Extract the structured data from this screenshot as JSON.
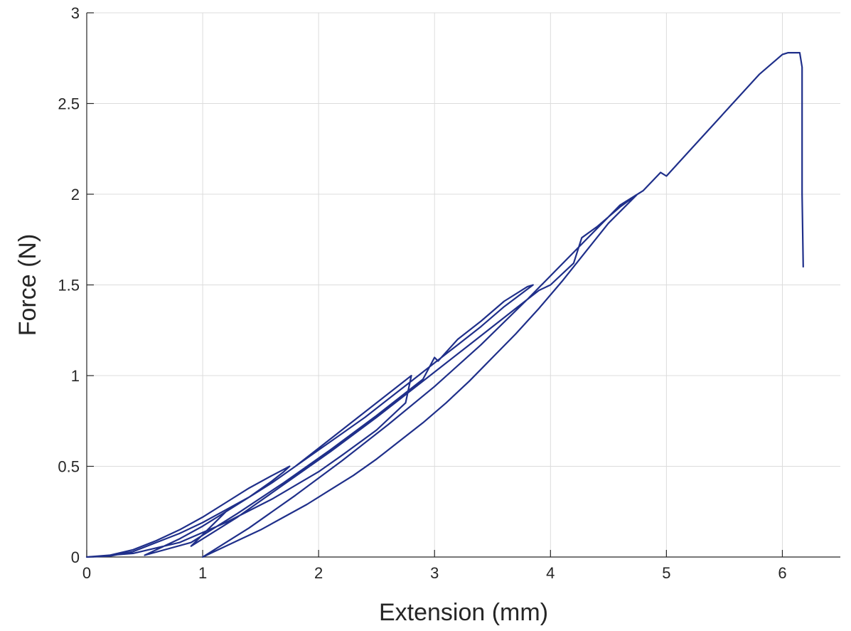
{
  "chart_data": {
    "type": "line",
    "xlabel": "Extension (mm)",
    "ylabel": "Force (N)",
    "xlim": [
      0,
      6.5
    ],
    "ylim": [
      0,
      3
    ],
    "xticks": [
      0,
      1,
      2,
      3,
      4,
      5,
      6
    ],
    "yticks": [
      0,
      0.5,
      1,
      1.5,
      2,
      2.5,
      3
    ],
    "xtick_labels": [
      "0",
      "1",
      "2",
      "3",
      "4",
      "5",
      "6"
    ],
    "ytick_labels": [
      "0",
      "0.5",
      "1",
      "1.5",
      "2",
      "2.5",
      "3"
    ],
    "grid": true,
    "line_color": "#1f2f8a",
    "series": [
      {
        "x": [
          0,
          0.2,
          0.4,
          0.6,
          0.8,
          1.0,
          1.2,
          1.4,
          1.6,
          1.7,
          1.75,
          1.6,
          1.4,
          1.2,
          1.0,
          0.8,
          0.6,
          0.4,
          0.2,
          0,
          0.4,
          0.8,
          1.2,
          1.6,
          2.0,
          2.2,
          2.5,
          2.75,
          2.8,
          2.6,
          2.4,
          2.2,
          2.0,
          1.8,
          1.6,
          1.4,
          1.2,
          1.0,
          0.8,
          0.5,
          0.9,
          1.3,
          1.7,
          2.1,
          2.5,
          2.9,
          3.0,
          3.03,
          3.2,
          3.4,
          3.6,
          3.8,
          3.85,
          3.6,
          3.4,
          3.2,
          3.0,
          2.8,
          2.6,
          2.4,
          2.2,
          2.0,
          1.8,
          1.6,
          1.4,
          1.2,
          0.9,
          1.3,
          1.7,
          2.1,
          2.5,
          2.9,
          3.3,
          3.7,
          3.9,
          4.0,
          4.2,
          4.27,
          4.4,
          4.6,
          4.75,
          4.5,
          4.3,
          4.1,
          3.9,
          3.7,
          3.5,
          3.3,
          3.1,
          2.9,
          2.7,
          2.5,
          2.3,
          2.1,
          1.9,
          1.7,
          1.5,
          1.3,
          1.0,
          1.4,
          1.8,
          2.2,
          2.6,
          3.0,
          3.4,
          3.8,
          4.2,
          4.6,
          4.8,
          4.95,
          5.0,
          5.2,
          5.4,
          5.6,
          5.8,
          6.0,
          6.05,
          6.15,
          6.17,
          6.17,
          6.18
        ],
        "y": [
          0,
          0.005,
          0.03,
          0.08,
          0.13,
          0.19,
          0.26,
          0.33,
          0.42,
          0.47,
          0.5,
          0.45,
          0.38,
          0.3,
          0.22,
          0.15,
          0.09,
          0.04,
          0.01,
          0,
          0.02,
          0.08,
          0.19,
          0.32,
          0.47,
          0.56,
          0.7,
          0.85,
          1.0,
          0.9,
          0.8,
          0.7,
          0.6,
          0.5,
          0.41,
          0.33,
          0.25,
          0.17,
          0.1,
          0.01,
          0.08,
          0.24,
          0.41,
          0.59,
          0.78,
          0.98,
          1.1,
          1.08,
          1.2,
          1.3,
          1.41,
          1.49,
          1.5,
          1.38,
          1.27,
          1.17,
          1.07,
          0.97,
          0.87,
          0.77,
          0.68,
          0.59,
          0.5,
          0.41,
          0.33,
          0.25,
          0.06,
          0.22,
          0.4,
          0.58,
          0.77,
          0.97,
          1.17,
          1.37,
          1.47,
          1.5,
          1.62,
          1.76,
          1.82,
          1.93,
          2.0,
          1.84,
          1.68,
          1.52,
          1.37,
          1.23,
          1.1,
          0.97,
          0.85,
          0.74,
          0.64,
          0.54,
          0.45,
          0.37,
          0.29,
          0.22,
          0.15,
          0.09,
          0.0,
          0.16,
          0.34,
          0.53,
          0.73,
          0.94,
          1.17,
          1.42,
          1.68,
          1.94,
          2.02,
          2.12,
          2.1,
          2.24,
          2.38,
          2.52,
          2.66,
          2.77,
          2.78,
          2.78,
          2.7,
          2.0,
          1.6
        ]
      }
    ]
  }
}
